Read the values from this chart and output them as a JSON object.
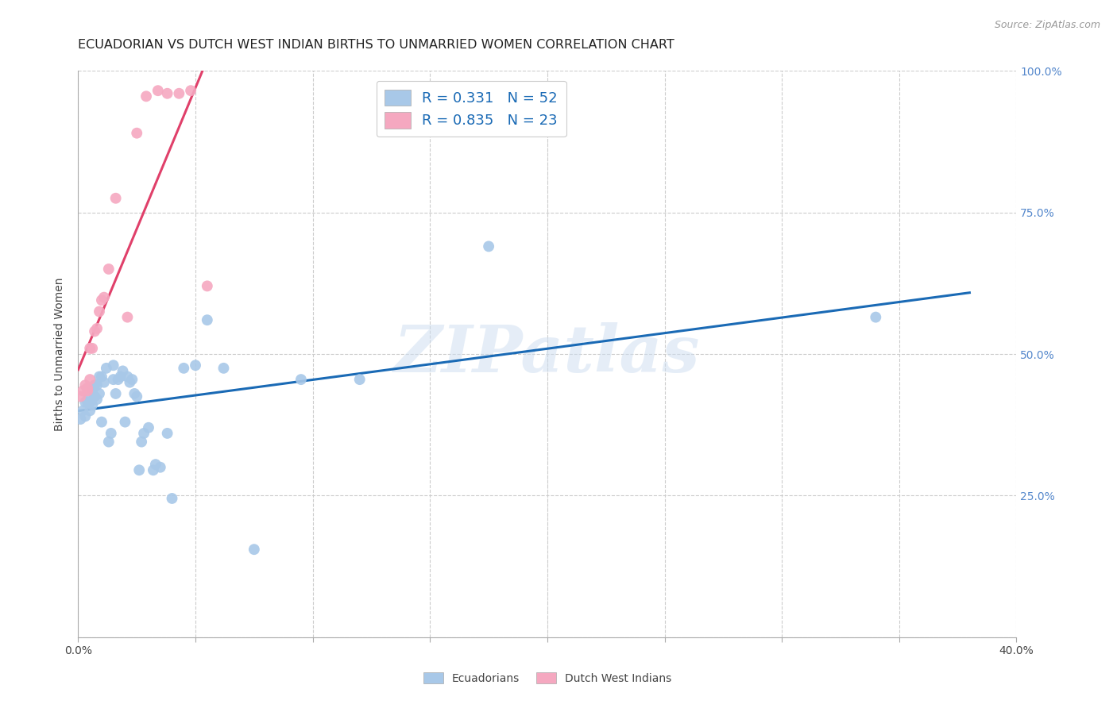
{
  "title": "ECUADORIAN VS DUTCH WEST INDIAN BIRTHS TO UNMARRIED WOMEN CORRELATION CHART",
  "source": "Source: ZipAtlas.com",
  "ylabel": "Births to Unmarried Women",
  "xlim": [
    0.0,
    0.4
  ],
  "ylim": [
    0.0,
    1.0
  ],
  "xtick_positions": [
    0.0,
    0.05,
    0.1,
    0.15,
    0.2,
    0.25,
    0.3,
    0.35,
    0.4
  ],
  "xticklabels": [
    "0.0%",
    "",
    "",
    "",
    "",
    "",
    "",
    "",
    "40.0%"
  ],
  "ytick_positions": [
    0.0,
    0.25,
    0.5,
    0.75,
    1.0
  ],
  "yticklabels_right": [
    "",
    "25.0%",
    "50.0%",
    "75.0%",
    "100.0%"
  ],
  "blue_r": 0.331,
  "blue_n": 52,
  "pink_r": 0.835,
  "pink_n": 23,
  "blue_color": "#a8c8e8",
  "pink_color": "#f5a8c0",
  "blue_line_color": "#1a6ab5",
  "pink_line_color": "#e0406a",
  "legend_label_blue": "Ecuadorians",
  "legend_label_pink": "Dutch West Indians",
  "watermark_text": "ZIPatlas",
  "background_color": "#ffffff",
  "grid_color": "#cccccc",
  "title_fontsize": 11.5,
  "source_fontsize": 9,
  "axis_label_fontsize": 10,
  "tick_fontsize": 10,
  "legend_fontsize": 13,
  "blue_dots_x": [
    0.001,
    0.002,
    0.003,
    0.003,
    0.004,
    0.004,
    0.005,
    0.005,
    0.006,
    0.006,
    0.007,
    0.007,
    0.008,
    0.008,
    0.009,
    0.009,
    0.01,
    0.01,
    0.011,
    0.012,
    0.013,
    0.014,
    0.015,
    0.015,
    0.016,
    0.017,
    0.018,
    0.019,
    0.02,
    0.021,
    0.022,
    0.023,
    0.024,
    0.025,
    0.026,
    0.027,
    0.028,
    0.03,
    0.032,
    0.033,
    0.035,
    0.038,
    0.04,
    0.045,
    0.05,
    0.055,
    0.062,
    0.075,
    0.095,
    0.12,
    0.175,
    0.34
  ],
  "blue_dots_y": [
    0.385,
    0.4,
    0.415,
    0.39,
    0.42,
    0.415,
    0.415,
    0.4,
    0.41,
    0.435,
    0.425,
    0.445,
    0.42,
    0.445,
    0.43,
    0.46,
    0.38,
    0.46,
    0.45,
    0.475,
    0.345,
    0.36,
    0.455,
    0.48,
    0.43,
    0.455,
    0.46,
    0.47,
    0.38,
    0.46,
    0.45,
    0.455,
    0.43,
    0.425,
    0.295,
    0.345,
    0.36,
    0.37,
    0.295,
    0.305,
    0.3,
    0.36,
    0.245,
    0.475,
    0.48,
    0.56,
    0.475,
    0.155,
    0.455,
    0.455,
    0.69,
    0.565
  ],
  "pink_dots_x": [
    0.001,
    0.002,
    0.003,
    0.004,
    0.004,
    0.005,
    0.005,
    0.006,
    0.007,
    0.008,
    0.009,
    0.01,
    0.011,
    0.013,
    0.016,
    0.021,
    0.025,
    0.029,
    0.034,
    0.038,
    0.043,
    0.048,
    0.055
  ],
  "pink_dots_y": [
    0.425,
    0.435,
    0.445,
    0.435,
    0.44,
    0.455,
    0.51,
    0.51,
    0.54,
    0.545,
    0.575,
    0.595,
    0.6,
    0.65,
    0.775,
    0.565,
    0.89,
    0.955,
    0.965,
    0.96,
    0.96,
    0.965,
    0.62
  ]
}
